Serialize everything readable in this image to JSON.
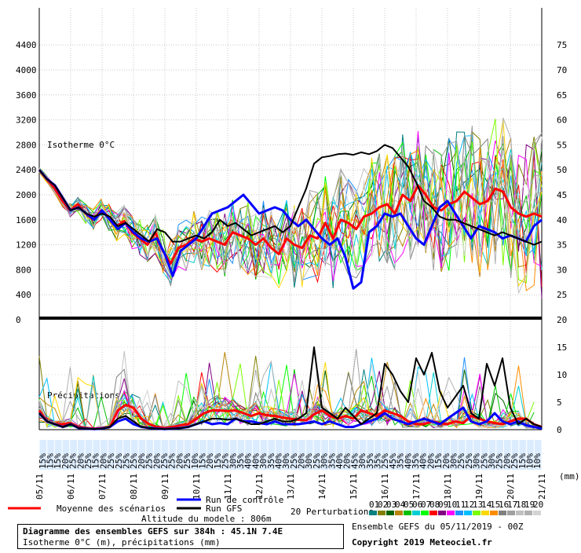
{
  "chart_data": {
    "type": "line",
    "panels": [
      {
        "name": "isotherme",
        "label": "Isotherme 0°C",
        "y_left_ticks": [
          400,
          800,
          1200,
          1600,
          2000,
          2400,
          2800,
          3200,
          3600,
          4000,
          4400
        ],
        "y_left_ylim": [
          0,
          4400
        ],
        "y_right_ticks": [
          25,
          30,
          35,
          40,
          45,
          50,
          55,
          60,
          65,
          70,
          75
        ],
        "ylim": [
          0,
          4400
        ],
        "series": [
          {
            "name": "Moyenne des scénarios",
            "color": "#ff0000",
            "values": [
              2400,
              2250,
              2100,
              1900,
              1750,
              1850,
              1700,
              1600,
              1750,
              1650,
              1500,
              1580,
              1400,
              1300,
              1200,
              1400,
              1100,
              900,
              1150,
              1200,
              1300,
              1250,
              1300,
              1250,
              1200,
              1400,
              1350,
              1300,
              1200,
              1300,
              1150,
              1050,
              1300,
              1200,
              1150,
              1350,
              1300,
              1550,
              1300,
              1600,
              1550,
              1450,
              1650,
              1700,
              1800,
              1850,
              1700,
              2000,
              1900,
              2150,
              2000,
              1800,
              1750,
              1850,
              1900,
              2050,
              1950,
              1850,
              1900,
              2100,
              2050,
              1800,
              1700,
              1650,
              1700,
              1650
            ]
          },
          {
            "name": "Run de contrôle",
            "color": "#0000ff",
            "values": [
              2400,
              2250,
              2150,
              1950,
              1750,
              1800,
              1700,
              1600,
              1750,
              1600,
              1450,
              1550,
              1400,
              1300,
              1250,
              1300,
              1050,
              700,
              1100,
              1200,
              1300,
              1500,
              1700,
              1750,
              1800,
              1900,
              2000,
              1850,
              1700,
              1750,
              1800,
              1750,
              1600,
              1500,
              1600,
              1450,
              1300,
              1200,
              1300,
              1000,
              500,
              600,
              1400,
              1500,
              1700,
              1650,
              1700,
              1500,
              1300,
              1200,
              1500,
              1800,
              1900,
              1700,
              1500,
              1300,
              1500,
              1450,
              1400,
              1300,
              1350,
              1300,
              1250,
              1500,
              1600
            ]
          },
          {
            "name": "Run GFS",
            "color": "#000000",
            "values": [
              2400,
              2250,
              2150,
              1950,
              1750,
              1800,
              1700,
              1650,
              1700,
              1650,
              1500,
              1550,
              1450,
              1350,
              1250,
              1450,
              1400,
              1250,
              1250,
              1300,
              1350,
              1300,
              1400,
              1600,
              1500,
              1550,
              1450,
              1350,
              1400,
              1450,
              1500,
              1400,
              1500,
              1800,
              2100,
              2500,
              2600,
              2620,
              2650,
              2660,
              2640,
              2680,
              2650,
              2700,
              2800,
              2750,
              2600,
              2450,
              2200,
              1900,
              1800,
              1650,
              1600,
              1600,
              1550,
              1500,
              1450,
              1400,
              1350,
              1400,
              1350,
              1300,
              1250,
              1200,
              1250
            ]
          }
        ]
      },
      {
        "name": "precipitations",
        "label": "Précipitations",
        "y_left_ticks": [
          0
        ],
        "y_right_ticks": [
          0,
          5,
          10,
          15,
          20
        ],
        "ylim": [
          0,
          20
        ],
        "series": [
          {
            "name": "Moyenne des scénarios",
            "color": "#ff0000",
            "values": [
              3.5,
              1.5,
              1,
              1,
              1.2,
              0.5,
              0.3,
              0.2,
              0.3,
              0.5,
              3.5,
              4.5,
              4,
              2,
              1,
              0.5,
              0.3,
              0.5,
              0.8,
              1,
              2,
              3,
              3.5,
              3.5,
              3.4,
              3.5,
              3,
              2.5,
              3,
              2.6,
              2.5,
              2.2,
              2,
              1.8,
              1.7,
              2.8,
              3.5,
              2.5,
              2,
              2.5,
              2,
              3.5,
              3,
              2.5,
              3.5,
              3,
              2.5,
              1.5,
              1,
              1,
              1.5,
              1.2,
              1,
              1.5,
              1.2,
              2.5,
              2,
              1.5,
              1.2,
              1,
              1.5,
              2,
              2,
              1,
              0.5
            ]
          },
          {
            "name": "Run de contrôle",
            "color": "#0000ff",
            "values": [
              3,
              1.5,
              1,
              0.5,
              1,
              0.3,
              0.2,
              0.1,
              0.2,
              0.5,
              1.5,
              2,
              1,
              0.5,
              0.3,
              0.2,
              0.1,
              0.2,
              0.3,
              0.5,
              1,
              1.5,
              1,
              1.2,
              1,
              2,
              1.5,
              1.5,
              1.2,
              1,
              1.5,
              1,
              1,
              1,
              1.2,
              1.5,
              1,
              1.5,
              1,
              0.5,
              0.5,
              1,
              1.5,
              2,
              3,
              2,
              1.5,
              1,
              1.5,
              2,
              1.5,
              1,
              2,
              3,
              4,
              1.5,
              1,
              1.5,
              3,
              1.5,
              1,
              1.5,
              0.8,
              0.5,
              0.2
            ]
          },
          {
            "name": "Run GFS",
            "color": "#000000",
            "values": [
              3,
              1.5,
              1,
              0.5,
              1,
              0.3,
              0.2,
              0.1,
              0.2,
              0.5,
              2,
              2.5,
              1.5,
              0.5,
              0.3,
              0.2,
              0.1,
              0.2,
              0.3,
              0.5,
              1,
              1.5,
              2,
              2,
              1.8,
              2,
              1.5,
              1,
              1,
              1.5,
              2,
              1.5,
              1.5,
              2,
              3,
              15,
              4,
              3,
              2,
              4,
              2.5,
              1,
              2,
              3,
              12,
              10,
              7,
              5,
              13,
              10,
              14,
              7,
              4,
              6,
              8,
              3,
              2,
              12,
              8,
              13,
              4,
              1,
              2,
              1,
              0.5
            ]
          }
        ]
      }
    ],
    "perturbations_count": 20,
    "probabilities": [
      "15%",
      "15%",
      "15%",
      "20%",
      "25%",
      "20%",
      "25%",
      "15%",
      "20%",
      "25%",
      "25%",
      "25%",
      "25%",
      "20%",
      "25%",
      "20%",
      "25%",
      "25%",
      "20%",
      "25%",
      "10%",
      "15%",
      "20%",
      "15%",
      "25%",
      "30%",
      "35%",
      "40%",
      "40%",
      "30%",
      "35%",
      "40%",
      "30%",
      "25%",
      "20%",
      "30%",
      "25%",
      "30%",
      "35%",
      "40%",
      "20%",
      "45%",
      "30%",
      "35%",
      "35%",
      "25%",
      "45%",
      "35%",
      "40%",
      "35%",
      "40%",
      "20%",
      "15%",
      "20%",
      "30%",
      "25%",
      "25%",
      "30%",
      "25%",
      "30%",
      "25%",
      "20%",
      "25%",
      "15%",
      "10%",
      "10%"
    ],
    "xlabel": "(mm)",
    "x_ticks": [
      "05/11",
      "06/11",
      "07/11",
      "08/11",
      "09/11",
      "10/11",
      "11/11",
      "12/11",
      "13/11",
      "14/11",
      "15/11",
      "16/11",
      "17/11",
      "18/11",
      "19/11",
      "20/11",
      "21/11"
    ],
    "legend": {
      "mean": "Moyenne des scénarios",
      "control": "Run de contrôle",
      "gfs": "Run GFS",
      "altitude": "Altitude du modele : 806m",
      "perturbations": "20 Perturbations",
      "perturbation_numbers": [
        "01",
        "02",
        "03",
        "04",
        "05",
        "06",
        "07",
        "08",
        "09",
        "10",
        "11",
        "12",
        "13",
        "14",
        "15",
        "16",
        "17",
        "18",
        "19",
        "20"
      ],
      "perturbation_colors": [
        "#008080",
        "#808000",
        "#006400",
        "#b8860b",
        "#00c000",
        "#00ced1",
        "#00ff00",
        "#ff0000",
        "#800080",
        "#ff00ff",
        "#1e90ff",
        "#00bfff",
        "#7cfc00",
        "#ffd700",
        "#ff8c00",
        "#808080",
        "#a0a0a0",
        "#c0c0c0",
        "#b0b0b0",
        "#d3d3d3"
      ]
    }
  },
  "footer": {
    "title": "Diagramme des ensembles GEFS sur 384h : 45.1N 7.4E",
    "subtitle": "Isotherme 0°C (m), précipitations (mm)",
    "ensemble": "Ensemble GEFS du 05/11/2019 - 00Z",
    "copyright": "Copyright 2019 Meteociel.fr"
  }
}
